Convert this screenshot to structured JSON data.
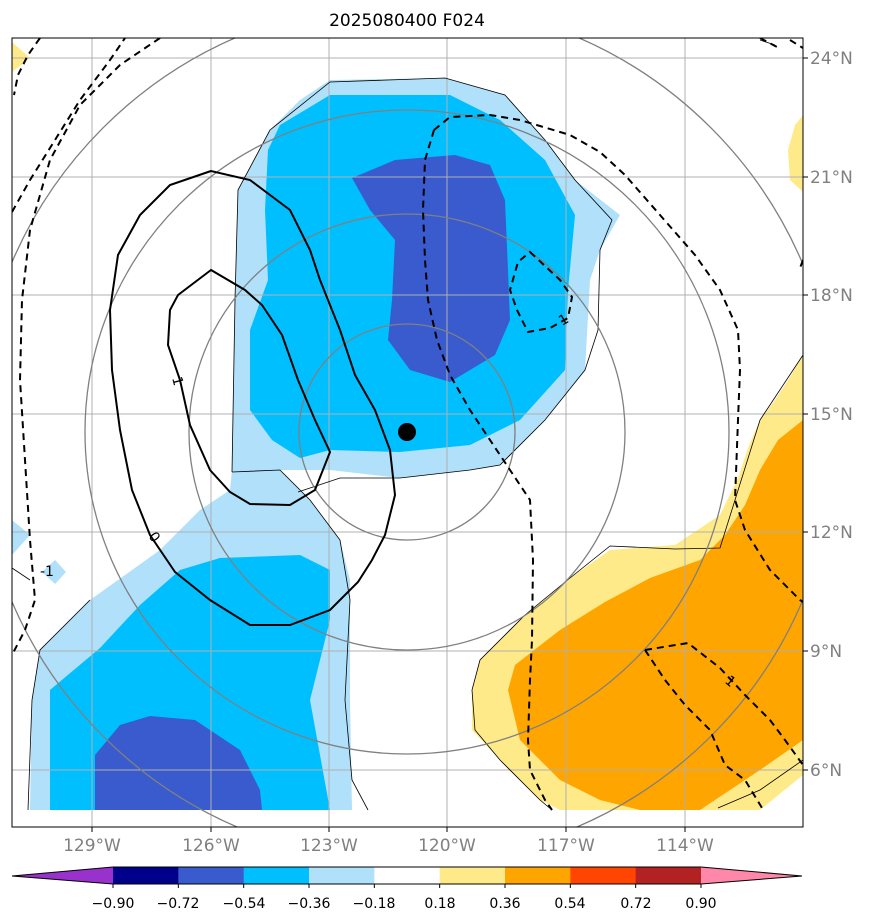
{
  "title": "2025080400 F024",
  "map": {
    "lon_ticks": [
      "129°W",
      "126°W",
      "123°W",
      "120°W",
      "117°W",
      "114°W"
    ],
    "lat_ticks": [
      "24°N",
      "21°N",
      "18°N",
      "15°N",
      "12°N",
      "9°N",
      "6°N"
    ],
    "storm_center_marker": "filled-black-circle",
    "contour_labels": [
      "1",
      "0",
      "1",
      "1",
      "-1"
    ]
  },
  "colorbar": {
    "tick_labels": [
      "−0.90",
      "−0.72",
      "−0.54",
      "−0.36",
      "−0.18",
      "0.18",
      "0.36",
      "0.54",
      "0.72",
      "0.90"
    ],
    "colors": [
      "#9932cc",
      "#00008b",
      "#3a5bcd",
      "#00bfff",
      "#b0e0fa",
      "#ffffff",
      "#ffea8a",
      "#ffa500",
      "#ff4500",
      "#b22222",
      "#ff88aa"
    ]
  },
  "colors": {
    "fill_low1": "#b0e0fa",
    "fill_low2": "#00bfff",
    "fill_low3": "#3a5bcd",
    "fill_high1": "#ffea8a",
    "fill_high2": "#ffa500",
    "grid": "#b0b0b0",
    "range_rings": "#808080"
  }
}
